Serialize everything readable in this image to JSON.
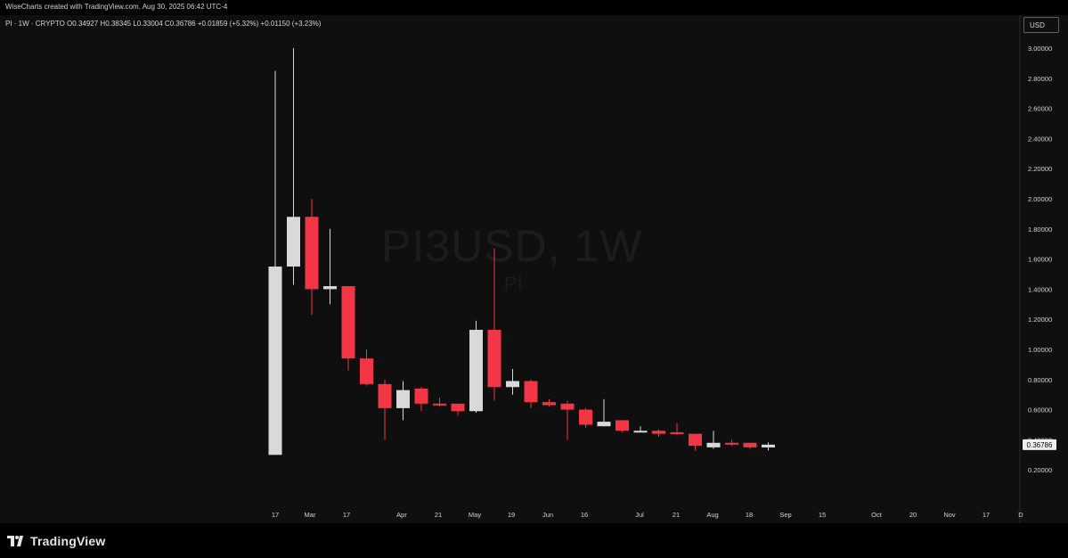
{
  "header": {
    "attribution": "WiseCharts created with TradingView.com, Aug 30, 2025 06:42 UTC-4"
  },
  "legend": {
    "ohlc_text": "PI · 1W · CRYPTO  O0.34927  H0.38345  L0.33004  C0.36786  +0.01859 (+5.32%)  +0.01150 (+3.23%)"
  },
  "currency_button": "USD",
  "watermark": {
    "symbol": "PI3USD, 1W",
    "sub": "PI"
  },
  "last_price_label": "0.36786",
  "footer": {
    "logo_text": "TradingView"
  },
  "colors": {
    "up": "#d9d9d9",
    "down": "#f23645",
    "background": "#0f0f0f",
    "text": "#d1d4dc"
  },
  "chart_data": {
    "type": "candlestick",
    "title": "PI3USD, 1W",
    "timeframe": "1W",
    "ylim": [
      0.1,
      3.2
    ],
    "y_ticks": [
      "3.00000",
      "2.80000",
      "2.60000",
      "2.40000",
      "2.20000",
      "2.00000",
      "1.80000",
      "1.60000",
      "1.40000",
      "1.20000",
      "1.00000",
      "0.80000",
      "0.60000",
      "0.40000",
      "0.20000"
    ],
    "x_ticks": [
      "17",
      "Mar",
      "17",
      "Apr",
      "21",
      "May",
      "19",
      "Jun",
      "16",
      "Jul",
      "21",
      "Aug",
      "18",
      "Sep",
      "15",
      "Oct",
      "20",
      "Nov",
      "17",
      "D"
    ],
    "candles": [
      {
        "o": 0.3,
        "h": 2.85,
        "l": 0.3,
        "c": 1.55
      },
      {
        "o": 1.55,
        "h": 3.0,
        "l": 1.43,
        "c": 1.88
      },
      {
        "o": 1.88,
        "h": 2.0,
        "l": 1.23,
        "c": 1.4
      },
      {
        "o": 1.4,
        "h": 1.8,
        "l": 1.3,
        "c": 1.42
      },
      {
        "o": 1.42,
        "h": 1.42,
        "l": 0.86,
        "c": 0.94
      },
      {
        "o": 0.94,
        "h": 1.0,
        "l": 0.76,
        "c": 0.77
      },
      {
        "o": 0.77,
        "h": 0.8,
        "l": 0.4,
        "c": 0.61
      },
      {
        "o": 0.61,
        "h": 0.79,
        "l": 0.53,
        "c": 0.73
      },
      {
        "o": 0.74,
        "h": 0.75,
        "l": 0.59,
        "c": 0.64
      },
      {
        "o": 0.64,
        "h": 0.68,
        "l": 0.62,
        "c": 0.63
      },
      {
        "o": 0.64,
        "h": 0.64,
        "l": 0.56,
        "c": 0.59
      },
      {
        "o": 0.59,
        "h": 1.19,
        "l": 0.58,
        "c": 1.13
      },
      {
        "o": 1.13,
        "h": 1.67,
        "l": 0.66,
        "c": 0.75
      },
      {
        "o": 0.75,
        "h": 0.87,
        "l": 0.7,
        "c": 0.79
      },
      {
        "o": 0.79,
        "h": 0.8,
        "l": 0.61,
        "c": 0.65
      },
      {
        "o": 0.65,
        "h": 0.67,
        "l": 0.62,
        "c": 0.63
      },
      {
        "o": 0.64,
        "h": 0.66,
        "l": 0.4,
        "c": 0.6
      },
      {
        "o": 0.6,
        "h": 0.61,
        "l": 0.48,
        "c": 0.5
      },
      {
        "o": 0.49,
        "h": 0.67,
        "l": 0.49,
        "c": 0.52
      },
      {
        "o": 0.53,
        "h": 0.53,
        "l": 0.45,
        "c": 0.46
      },
      {
        "o": 0.46,
        "h": 0.49,
        "l": 0.45,
        "c": 0.46
      },
      {
        "o": 0.46,
        "h": 0.47,
        "l": 0.42,
        "c": 0.44
      },
      {
        "o": 0.45,
        "h": 0.51,
        "l": 0.43,
        "c": 0.44
      },
      {
        "o": 0.44,
        "h": 0.44,
        "l": 0.33,
        "c": 0.36
      },
      {
        "o": 0.35,
        "h": 0.46,
        "l": 0.34,
        "c": 0.38
      },
      {
        "o": 0.38,
        "h": 0.4,
        "l": 0.36,
        "c": 0.37
      },
      {
        "o": 0.38,
        "h": 0.38,
        "l": 0.34,
        "c": 0.35
      },
      {
        "o": 0.34927,
        "h": 0.38345,
        "l": 0.33004,
        "c": 0.36786
      }
    ]
  }
}
